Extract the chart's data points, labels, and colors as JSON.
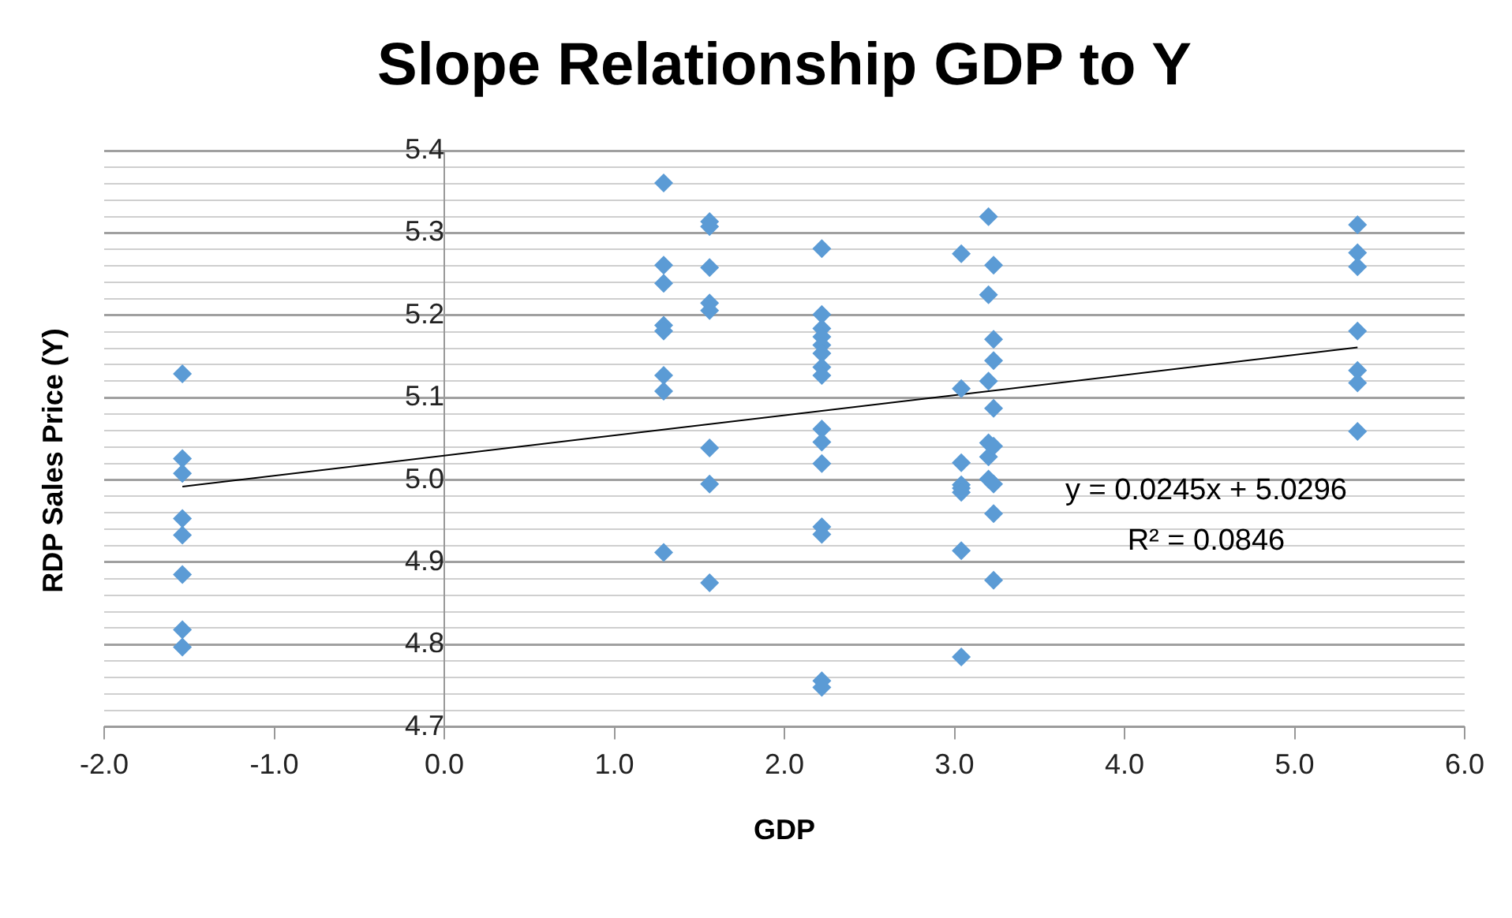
{
  "chart_data": {
    "type": "scatter",
    "title": "Slope Relationship GDP to Y",
    "xlabel": "GDP",
    "ylabel": "RDP Sales Price (Y)",
    "annotations": [
      "y = 0.0245x + 5.0296",
      "R² = 0.0846"
    ],
    "xlim": [
      -2,
      6
    ],
    "xticks": [
      {
        "value": -2,
        "label": "-2.0"
      },
      {
        "value": -1,
        "label": "-1.0"
      },
      {
        "value": 0,
        "label": "0.0"
      },
      {
        "value": 1,
        "label": "1.0"
      },
      {
        "value": 2,
        "label": "2.0"
      },
      {
        "value": 3,
        "label": "3.0"
      },
      {
        "value": 4,
        "label": "4.0"
      },
      {
        "value": 5,
        "label": "5.0"
      },
      {
        "value": 6,
        "label": "6.0"
      }
    ],
    "ylim": [
      4.7,
      5.4
    ],
    "yticks": [
      4.7,
      {
        "value": 4.72,
        "label": null
      },
      {
        "value": 4.74,
        "label": null
      },
      {
        "value": 4.76,
        "label": null
      },
      {
        "value": 4.78,
        "label": null
      },
      4.8,
      {
        "value": 4.82,
        "label": null
      },
      {
        "value": 4.84,
        "label": null
      },
      {
        "value": 4.86,
        "label": null
      },
      {
        "value": 4.88,
        "label": null
      },
      4.9,
      {
        "value": 4.92,
        "label": null
      },
      {
        "value": 4.94,
        "label": null
      },
      {
        "value": 4.96,
        "label": null
      },
      {
        "value": 4.98,
        "label": null
      },
      {
        "value": 5,
        "label": "5.0"
      },
      {
        "value": 5.02,
        "label": null
      },
      {
        "value": 5.04,
        "label": null
      },
      {
        "value": 5.06,
        "label": null
      },
      {
        "value": 5.08,
        "label": null
      },
      5.1,
      {
        "value": 5.12,
        "label": null
      },
      {
        "value": 5.14,
        "label": null
      },
      {
        "value": 5.16,
        "label": null
      },
      {
        "value": 5.18,
        "label": null
      },
      5.2,
      {
        "value": 5.22,
        "label": null
      },
      {
        "value": 5.24,
        "label": null
      },
      {
        "value": 5.26,
        "label": null
      },
      {
        "value": 5.28,
        "label": null
      },
      5.3,
      {
        "value": 5.32,
        "label": null
      },
      {
        "value": 5.34,
        "label": null
      },
      {
        "value": 5.36,
        "label": null
      },
      {
        "value": 5.38,
        "label": null
      },
      5.4
    ],
    "grid": "y",
    "legend": false,
    "series": [
      {
        "type": "scatter",
        "color": "#5b9bd5",
        "marker": "diamond",
        "x": [
          -1.54,
          -1.54,
          -1.54,
          -1.54,
          -1.54,
          -1.54,
          -1.54,
          -1.54,
          1.29,
          1.29,
          1.29,
          1.29,
          1.29,
          1.29,
          1.29,
          1.29,
          1.56,
          1.56,
          1.56,
          1.56,
          1.56,
          1.56,
          1.56,
          1.56,
          2.22,
          2.22,
          2.22,
          2.22,
          2.22,
          2.22,
          2.22,
          2.22,
          2.22,
          2.22,
          2.22,
          2.22,
          2.22,
          2.22,
          2.22,
          3.04,
          3.04,
          3.04,
          3.04,
          3.04,
          3.04,
          3.04,
          3.04,
          3.2,
          3.2,
          3.2,
          3.2,
          3.2,
          3.2,
          3.23,
          3.23,
          3.23,
          3.23,
          3.23,
          3.23,
          3.23,
          3.23,
          5.37,
          5.37,
          5.37,
          5.37,
          5.37,
          5.37,
          5.37
        ],
        "values": [
          5.129,
          5.026,
          5.008,
          4.953,
          4.933,
          4.885,
          4.818,
          4.797,
          5.361,
          5.261,
          5.239,
          5.188,
          5.181,
          5.127,
          5.108,
          4.912,
          5.314,
          5.308,
          5.258,
          5.215,
          5.206,
          5.039,
          4.995,
          4.875,
          5.281,
          5.201,
          5.184,
          5.174,
          5.164,
          5.154,
          5.137,
          5.127,
          5.062,
          5.046,
          5.02,
          4.943,
          4.934,
          4.756,
          4.748,
          5.275,
          5.111,
          5.021,
          4.994,
          4.99,
          4.985,
          4.914,
          4.785,
          5.32,
          5.225,
          5.12,
          5.045,
          5.028,
          5.001,
          5.261,
          5.171,
          5.145,
          5.087,
          5.041,
          4.995,
          4.959,
          4.878,
          5.31,
          5.276,
          5.259,
          5.181,
          5.133,
          5.118,
          5.059
        ]
      },
      {
        "type": "line",
        "color": "#000000",
        "marker": "none",
        "x": [
          -1.54,
          5.37
        ],
        "values": [
          4.992,
          5.161
        ]
      }
    ]
  }
}
